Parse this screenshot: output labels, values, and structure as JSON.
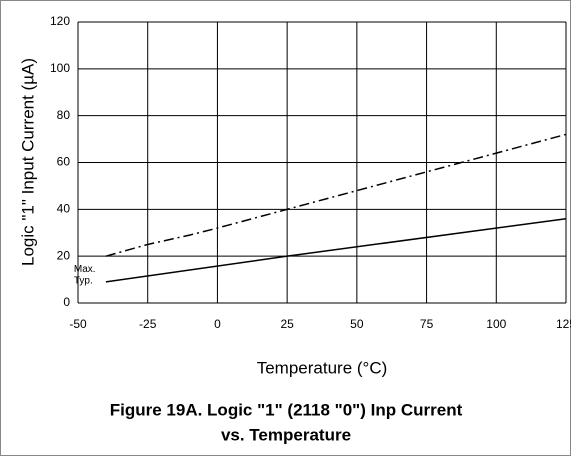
{
  "chart_data": {
    "type": "line",
    "title": [
      "Figure 19A. Logic \"1\" (2118 \"0\")  Inp Current",
      "vs. Temperature"
    ],
    "x_label": "Temperature (°C)",
    "y_label": "Logic \"1\" Input Current (µA)",
    "xlim": [
      -50,
      125
    ],
    "xticks": [
      -50,
      -25,
      0,
      25,
      50,
      75,
      100,
      125
    ],
    "ylim": [
      0,
      120
    ],
    "yticks": [
      0,
      20,
      40,
      60,
      80,
      100,
      120
    ],
    "grid": true,
    "series": [
      {
        "name": "Max.",
        "color": "#000000",
        "dash": "dashdot",
        "x": [
          -40,
          -25,
          -10,
          0,
          25,
          50,
          75,
          100,
          125
        ],
        "values": [
          20,
          25,
          29,
          32,
          40,
          48,
          56,
          64,
          72
        ]
      },
      {
        "name": "Typ.",
        "color": "#000000",
        "dash": "solid",
        "x": [
          -40,
          25,
          125
        ],
        "values": [
          9,
          20,
          36
        ]
      }
    ]
  }
}
